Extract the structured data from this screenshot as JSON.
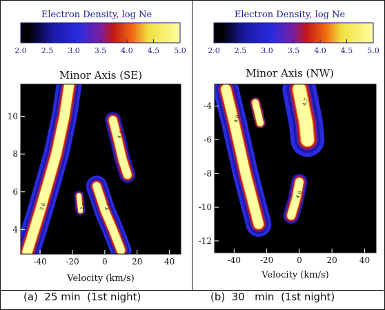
{
  "colorbar": {
    "title": "Electron Density, log Ne",
    "ticks": [
      "2.0",
      "2.5",
      "3.0",
      "3.5",
      "4.0",
      "4.5",
      "5.0"
    ],
    "range": [
      2.0,
      5.0
    ],
    "colors": [
      "#000000",
      "#1a1aa8",
      "#2a2ae0",
      "#6a1fa0",
      "#c01818",
      "#f06a10",
      "#f0e040",
      "#ffffa0"
    ]
  },
  "captions": {
    "left": "(a)  25 min  (1st night)",
    "right": "(b)  30   min  (1st night)"
  },
  "chart_data": [
    {
      "type": "heatmap",
      "title": "Minor Axis (SE)",
      "xlabel": "Velocity (km/s)",
      "ylabel": "",
      "xlim": [
        -52,
        47
      ],
      "ylim": [
        2.7,
        11.7
      ],
      "xticks": [
        -40,
        -20,
        0,
        20,
        40
      ],
      "xtick_labels": [
        "-40",
        "-20",
        "0",
        "20",
        "40"
      ],
      "yticks": [
        4,
        6,
        8,
        10
      ],
      "ytick_labels": [
        "4",
        "6",
        "8",
        "10"
      ],
      "features": [
        {
          "name": "diagonal-ridge",
          "level": 5.0,
          "path": [
            [
              -48,
              2.8
            ],
            [
              -40,
              5.0
            ],
            [
              -30,
              8.0
            ],
            [
              -25,
              10.0
            ],
            [
              -22,
              11.7
            ]
          ],
          "width": 6
        },
        {
          "name": "upper-right-blob",
          "level": 4.8,
          "path": [
            [
              5,
              9.8
            ],
            [
              8,
              8.8
            ],
            [
              11,
              7.7
            ],
            [
              14,
              6.9
            ]
          ],
          "width": 5
        },
        {
          "name": "lower-center-feature",
          "level": 4.9,
          "path": [
            [
              -5,
              6.3
            ],
            [
              0,
              5.0
            ],
            [
              5,
              4.0
            ],
            [
              10,
              2.9
            ]
          ],
          "width": 5
        },
        {
          "name": "left-small-blob",
          "level": 4.6,
          "path": [
            [
              -16,
              5.8
            ],
            [
              -15,
              5.0
            ]
          ],
          "width": 3
        }
      ],
      "contour_labels": [
        "3.6",
        "4.3",
        "4.1",
        "3.6",
        "3.6",
        "4.2"
      ]
    },
    {
      "type": "heatmap",
      "title": "Minor Axis (NW)",
      "xlabel": "Velocity (km/s)",
      "ylabel": "",
      "xlim": [
        -52,
        47
      ],
      "ylim": [
        -12.7,
        -2.7
      ],
      "xticks": [
        -40,
        -20,
        0,
        20,
        40
      ],
      "xtick_labels": [
        "-40",
        "-20",
        "0",
        "20",
        "40"
      ],
      "yticks": [
        -12,
        -10,
        -8,
        -6,
        -4
      ],
      "ytick_labels": [
        "-12",
        "-10",
        "-8",
        "-6",
        "-4"
      ],
      "features": [
        {
          "name": "upper-left-wedge",
          "level": 5.0,
          "path": [
            [
              -45,
              -3.0
            ],
            [
              -40,
              -5.0
            ],
            [
              -33,
              -8.0
            ],
            [
              -25,
              -11.0
            ]
          ],
          "width": 6
        },
        {
          "name": "upper-right-blob",
          "level": 4.9,
          "path": [
            [
              0,
              -3.0
            ],
            [
              2,
              -4.0
            ],
            [
              4,
              -5.0
            ],
            [
              5,
              -6.0
            ]
          ],
          "width": 8
        },
        {
          "name": "middle-blob",
          "level": 4.7,
          "path": [
            [
              0,
              -8.5
            ],
            [
              -2,
              -9.5
            ],
            [
              -5,
              -10.5
            ]
          ],
          "width": 5
        },
        {
          "name": "left-blob",
          "level": 4.5,
          "path": [
            [
              -27,
              -3.8
            ],
            [
              -24,
              -5.0
            ]
          ],
          "width": 4
        }
      ],
      "contour_labels": [
        "4.0",
        "4.7",
        "4.6"
      ]
    }
  ]
}
